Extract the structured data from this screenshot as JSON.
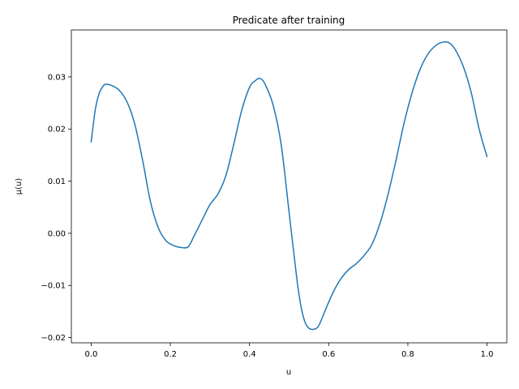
{
  "chart_data": {
    "type": "line",
    "title": "Predicate after training",
    "xlabel": "u",
    "ylabel": "μ(u)",
    "xlim": [
      -0.05,
      1.05
    ],
    "ylim": [
      -0.021,
      0.039
    ],
    "grid": false,
    "xticks": [
      0.0,
      0.2,
      0.4,
      0.6,
      0.8,
      1.0
    ],
    "xtick_labels": [
      "0.0",
      "0.2",
      "0.4",
      "0.6",
      "0.8",
      "1.0"
    ],
    "yticks": [
      -0.02,
      -0.01,
      0.0,
      0.01,
      0.02,
      0.03
    ],
    "ytick_labels": [
      "−0.02",
      "−0.01",
      "0.00",
      "0.01",
      "0.02",
      "0.03"
    ],
    "series": [
      {
        "color": "#1f77b4",
        "x": [
          0.0,
          0.01,
          0.02,
          0.03,
          0.036,
          0.05,
          0.07,
          0.09,
          0.11,
          0.13,
          0.15,
          0.17,
          0.19,
          0.21,
          0.225,
          0.245,
          0.26,
          0.28,
          0.3,
          0.32,
          0.34,
          0.36,
          0.38,
          0.4,
          0.415,
          0.427,
          0.44,
          0.46,
          0.48,
          0.5,
          0.52,
          0.53,
          0.54,
          0.55,
          0.563,
          0.575,
          0.59,
          0.61,
          0.63,
          0.65,
          0.67,
          0.69,
          0.71,
          0.73,
          0.75,
          0.77,
          0.79,
          0.81,
          0.83,
          0.85,
          0.87,
          0.89,
          0.905,
          0.92,
          0.94,
          0.96,
          0.98,
          1.0
        ],
        "y": [
          0.0175,
          0.0235,
          0.0268,
          0.0282,
          0.0286,
          0.0284,
          0.0275,
          0.0253,
          0.021,
          0.014,
          0.006,
          0.001,
          -0.0015,
          -0.0024,
          -0.0027,
          -0.0026,
          -0.0005,
          0.0025,
          0.0055,
          0.0075,
          0.011,
          0.017,
          0.0235,
          0.028,
          0.0293,
          0.0297,
          0.0285,
          0.0245,
          0.017,
          0.004,
          -0.009,
          -0.014,
          -0.017,
          -0.0182,
          -0.0184,
          -0.0177,
          -0.015,
          -0.0115,
          -0.0088,
          -0.007,
          -0.0058,
          -0.0042,
          -0.002,
          0.002,
          0.0075,
          0.014,
          0.021,
          0.0268,
          0.0313,
          0.0343,
          0.036,
          0.0367,
          0.0365,
          0.0352,
          0.032,
          0.027,
          0.02,
          0.0147
        ]
      }
    ]
  }
}
